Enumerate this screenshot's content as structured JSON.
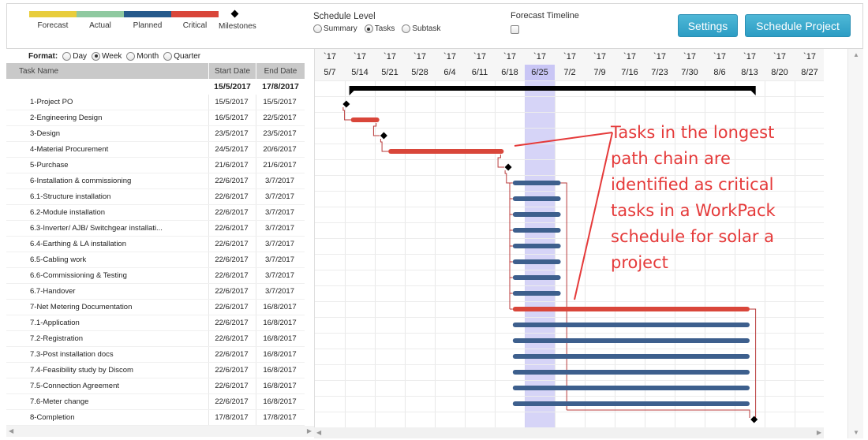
{
  "legend": [
    {
      "label": "Forecast",
      "color": "#e8cd3c",
      "kind": "bar"
    },
    {
      "label": "Actual",
      "color": "#8fc9a0",
      "kind": "bar"
    },
    {
      "label": "Planned",
      "color": "#265a8c",
      "kind": "bar"
    },
    {
      "label": "Critical",
      "color": "#d9463a",
      "kind": "bar"
    },
    {
      "label": "Milestones",
      "color": "#000000",
      "kind": "diamond"
    }
  ],
  "schedule_level": {
    "title": "Schedule Level",
    "options": [
      {
        "label": "Summary",
        "checked": false
      },
      {
        "label": "Tasks",
        "checked": true
      },
      {
        "label": "Subtask",
        "checked": false
      }
    ]
  },
  "forecast_timeline": {
    "label": "Forecast Timeline",
    "checked": false
  },
  "buttons": {
    "settings": "Settings",
    "schedule": "Schedule Project"
  },
  "format": {
    "label": "Format:",
    "options": [
      {
        "label": "Day",
        "checked": false
      },
      {
        "label": "Week",
        "checked": true
      },
      {
        "label": "Month",
        "checked": false
      },
      {
        "label": "Quarter",
        "checked": false
      }
    ]
  },
  "columns": {
    "task": "Task Name",
    "start": "Start Date",
    "end": "End Date"
  },
  "summary": {
    "start": "15/5/2017",
    "end": "17/8/2017"
  },
  "tasks": [
    {
      "name": "1-Project PO",
      "start": "15/5/2017",
      "end": "15/5/2017"
    },
    {
      "name": "2-Engineering Design",
      "start": "16/5/2017",
      "end": "22/5/2017"
    },
    {
      "name": "3-Design",
      "start": "23/5/2017",
      "end": "23/5/2017"
    },
    {
      "name": "4-Material Procurement",
      "start": "24/5/2017",
      "end": "20/6/2017"
    },
    {
      "name": "5-Purchase",
      "start": "21/6/2017",
      "end": "21/6/2017"
    },
    {
      "name": "6-Installation & commissioning",
      "start": "22/6/2017",
      "end": "3/7/2017"
    },
    {
      "name": "6.1-Structure installation",
      "start": "22/6/2017",
      "end": "3/7/2017"
    },
    {
      "name": "6.2-Module installation",
      "start": "22/6/2017",
      "end": "3/7/2017"
    },
    {
      "name": "6.3-Inverter/ AJB/ Switchgear installati...",
      "start": "22/6/2017",
      "end": "3/7/2017"
    },
    {
      "name": "6.4-Earthing & LA installation",
      "start": "22/6/2017",
      "end": "3/7/2017"
    },
    {
      "name": "6.5-Cabling work",
      "start": "22/6/2017",
      "end": "3/7/2017"
    },
    {
      "name": "6.6-Commissioning & Testing",
      "start": "22/6/2017",
      "end": "3/7/2017"
    },
    {
      "name": "6.7-Handover",
      "start": "22/6/2017",
      "end": "3/7/2017"
    },
    {
      "name": "7-Net Metering Documentation",
      "start": "22/6/2017",
      "end": "16/8/2017"
    },
    {
      "name": "7.1-Application",
      "start": "22/6/2017",
      "end": "16/8/2017"
    },
    {
      "name": "7.2-Registration",
      "start": "22/6/2017",
      "end": "16/8/2017"
    },
    {
      "name": "7.3-Post installation docs",
      "start": "22/6/2017",
      "end": "16/8/2017"
    },
    {
      "name": "7.4-Feasibility study by Discom",
      "start": "22/6/2017",
      "end": "16/8/2017"
    },
    {
      "name": "7.5-Connection Agreement",
      "start": "22/6/2017",
      "end": "16/8/2017"
    },
    {
      "name": "7.6-Meter change",
      "start": "22/6/2017",
      "end": "16/8/2017"
    },
    {
      "name": "8-Completion",
      "start": "17/8/2017",
      "end": "17/8/2017"
    }
  ],
  "timeline": {
    "year_label": "`17",
    "weeks": [
      "5/7",
      "5/14",
      "5/21",
      "5/28",
      "6/4",
      "6/11",
      "6/18",
      "6/25",
      "7/2",
      "7/9",
      "7/16",
      "7/23",
      "7/30",
      "8/6",
      "8/13",
      "8/20",
      "8/27"
    ],
    "highlight_week": "6/25"
  },
  "bars": [
    {
      "row": 0,
      "type": "milestone",
      "start_week": 1.05
    },
    {
      "row": 1,
      "type": "critical",
      "start_week": 1.2,
      "end_week": 2.15
    },
    {
      "row": 2,
      "type": "milestone",
      "start_week": 2.3
    },
    {
      "row": 3,
      "type": "critical",
      "start_week": 2.45,
      "end_week": 6.3
    },
    {
      "row": 4,
      "type": "milestone",
      "start_week": 6.45
    },
    {
      "row": 5,
      "type": "planned",
      "start_week": 6.6,
      "end_week": 8.2
    },
    {
      "row": 6,
      "type": "planned",
      "start_week": 6.6,
      "end_week": 8.2
    },
    {
      "row": 7,
      "type": "planned",
      "start_week": 6.6,
      "end_week": 8.2
    },
    {
      "row": 8,
      "type": "planned",
      "start_week": 6.6,
      "end_week": 8.2
    },
    {
      "row": 9,
      "type": "planned",
      "start_week": 6.6,
      "end_week": 8.2
    },
    {
      "row": 10,
      "type": "planned",
      "start_week": 6.6,
      "end_week": 8.2
    },
    {
      "row": 11,
      "type": "planned",
      "start_week": 6.6,
      "end_week": 8.2
    },
    {
      "row": 12,
      "type": "planned",
      "start_week": 6.6,
      "end_week": 8.2
    },
    {
      "row": 13,
      "type": "critical",
      "start_week": 6.6,
      "end_week": 14.5
    },
    {
      "row": 14,
      "type": "planned",
      "start_week": 6.6,
      "end_week": 14.5
    },
    {
      "row": 15,
      "type": "planned",
      "start_week": 6.6,
      "end_week": 14.5
    },
    {
      "row": 16,
      "type": "planned",
      "start_week": 6.6,
      "end_week": 14.5
    },
    {
      "row": 17,
      "type": "planned",
      "start_week": 6.6,
      "end_week": 14.5
    },
    {
      "row": 18,
      "type": "planned",
      "start_week": 6.6,
      "end_week": 14.5
    },
    {
      "row": 19,
      "type": "planned",
      "start_week": 6.6,
      "end_week": 14.5
    },
    {
      "row": 20,
      "type": "milestone",
      "start_week": 14.65
    }
  ],
  "summary_bar": {
    "start_week": 1.2,
    "end_week": 14.65
  },
  "annotation": "Tasks in the longest path chain are identified as critical tasks in a WorkPack schedule for solar a project"
}
